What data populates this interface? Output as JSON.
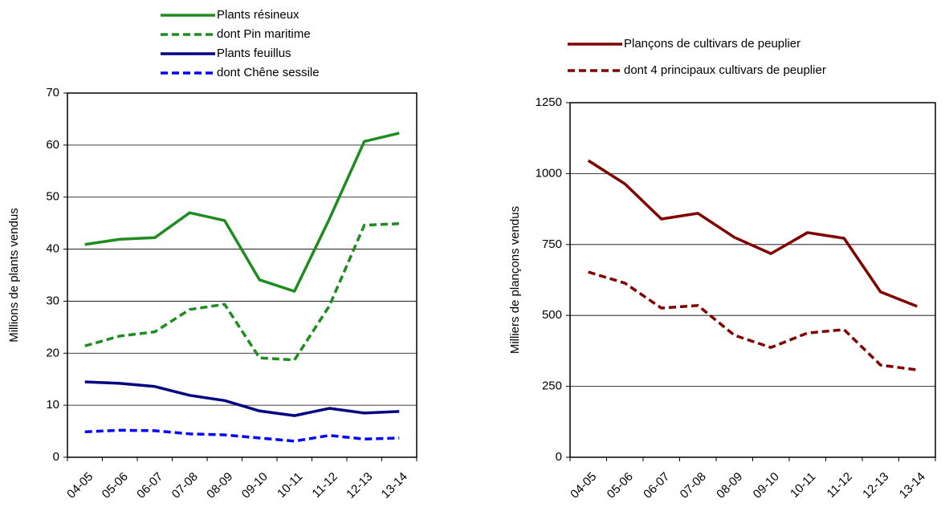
{
  "chart_data": [
    {
      "type": "line",
      "y_label": "Millions de plants vendus",
      "categories": [
        "04-05",
        "05-06",
        "06-07",
        "07-08",
        "08-09",
        "09-10",
        "10-11",
        "11-12",
        "12-13",
        "13-14"
      ],
      "ylim": [
        0,
        70
      ],
      "yticks": [
        0,
        10,
        20,
        30,
        40,
        50,
        60,
        70
      ],
      "grid": true,
      "series": [
        {
          "name": "Plants résineux",
          "color": "#1e8c1e",
          "style": "solid",
          "values": [
            40.9,
            41.9,
            42.2,
            47.0,
            45.5,
            34.1,
            31.9,
            45.8,
            60.7,
            62.3
          ]
        },
        {
          "name": "dont Pin maritime",
          "color": "#1e8c1e",
          "style": "dashed",
          "values": [
            21.4,
            23.3,
            24.1,
            28.4,
            29.4,
            19.1,
            18.7,
            29.1,
            44.6,
            44.9
          ]
        },
        {
          "name": "Plants feuillus",
          "color": "#000080",
          "style": "solid",
          "values": [
            14.5,
            14.2,
            13.6,
            11.9,
            10.9,
            8.9,
            8.0,
            9.4,
            8.5,
            8.8
          ]
        },
        {
          "name": "dont Chêne sessile",
          "color": "#0000ff",
          "style": "dashed",
          "values": [
            4.9,
            5.2,
            5.1,
            4.5,
            4.3,
            3.7,
            3.1,
            4.2,
            3.5,
            3.7
          ]
        }
      ]
    },
    {
      "type": "line",
      "y_label": "Milliers de plançons vendus",
      "categories": [
        "04-05",
        "05-06",
        "06-07",
        "07-08",
        "08-09",
        "09-10",
        "10-11",
        "11-12",
        "12-13",
        "13-14"
      ],
      "ylim": [
        0,
        1250
      ],
      "yticks": [
        0,
        250,
        500,
        750,
        1000,
        1250
      ],
      "grid": true,
      "series": [
        {
          "name": "Plançons de cultivars de peuplier",
          "color": "#800000",
          "style": "solid",
          "values": [
            1046,
            964,
            840,
            860,
            775,
            718,
            792,
            772,
            583,
            532
          ]
        },
        {
          "name": "dont 4 principaux cultivars de peuplier",
          "color": "#800000",
          "style": "dashed",
          "values": [
            653,
            614,
            526,
            535,
            430,
            387,
            438,
            450,
            325,
            308
          ]
        }
      ]
    }
  ]
}
